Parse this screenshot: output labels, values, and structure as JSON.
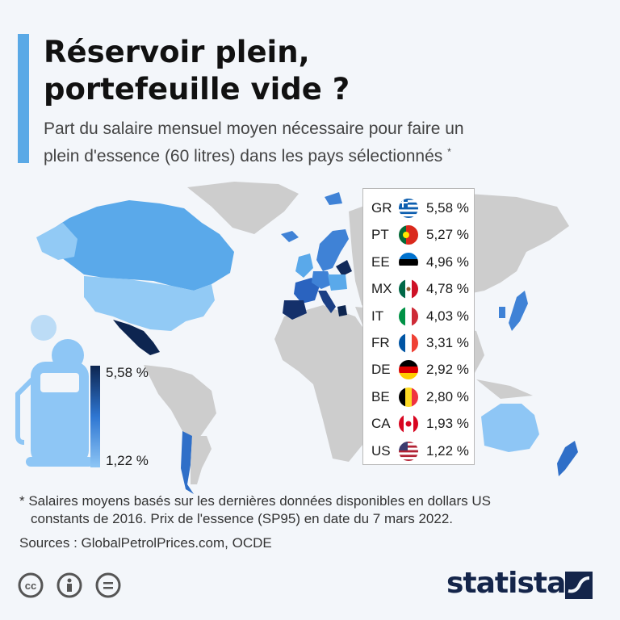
{
  "title": {
    "line1": "Réservoir plein,",
    "line2": "portefeuille vide ?"
  },
  "subtitle": {
    "line1": "Part du salaire mensuel moyen nécessaire pour faire un",
    "line2": "plein d'essence (60 litres) dans les pays sélectionnés",
    "asterisk": "*"
  },
  "color_scale": {
    "max_label": "5,58 %",
    "min_label": "1,22 %",
    "max": 5.58,
    "min": 1.22,
    "dark_color": "#0d2550",
    "light_color": "#8ec6f5",
    "no_data_color": "#cdcdcd"
  },
  "chart_data": {
    "type": "choropleth",
    "title": "Réservoir plein, portefeuille vide ?",
    "unit": "% du salaire mensuel moyen",
    "categories": [
      "GR",
      "PT",
      "EE",
      "MX",
      "IT",
      "FR",
      "DE",
      "BE",
      "CA",
      "US"
    ],
    "values": [
      5.58,
      5.27,
      4.96,
      4.78,
      4.03,
      3.31,
      2.92,
      2.8,
      1.93,
      1.22
    ],
    "labels": [
      "5,58 %",
      "5,27 %",
      "4,96 %",
      "4,78 %",
      "4,03 %",
      "3,31 %",
      "2,92 %",
      "2,80 %",
      "1,93 %",
      "1,22 %"
    ],
    "flags": [
      "flag-greece",
      "flag-portugal",
      "flag-estonia",
      "flag-mexico",
      "flag-italy",
      "flag-france",
      "flag-germany",
      "flag-belgium",
      "flag-canada",
      "flag-usa"
    ]
  },
  "footnote": {
    "line1": "* Salaires moyens basés sur les dernières données disponibles en dollars US",
    "line2": "constants de 2016. Prix de l'essence (SP95) en date du 7 mars 2022."
  },
  "sources": "Sources : GlobalPetrolPrices.com, OCDE",
  "license_icons": [
    "cc-icon",
    "attribution-icon",
    "no-derivatives-icon"
  ],
  "brand": "statista"
}
